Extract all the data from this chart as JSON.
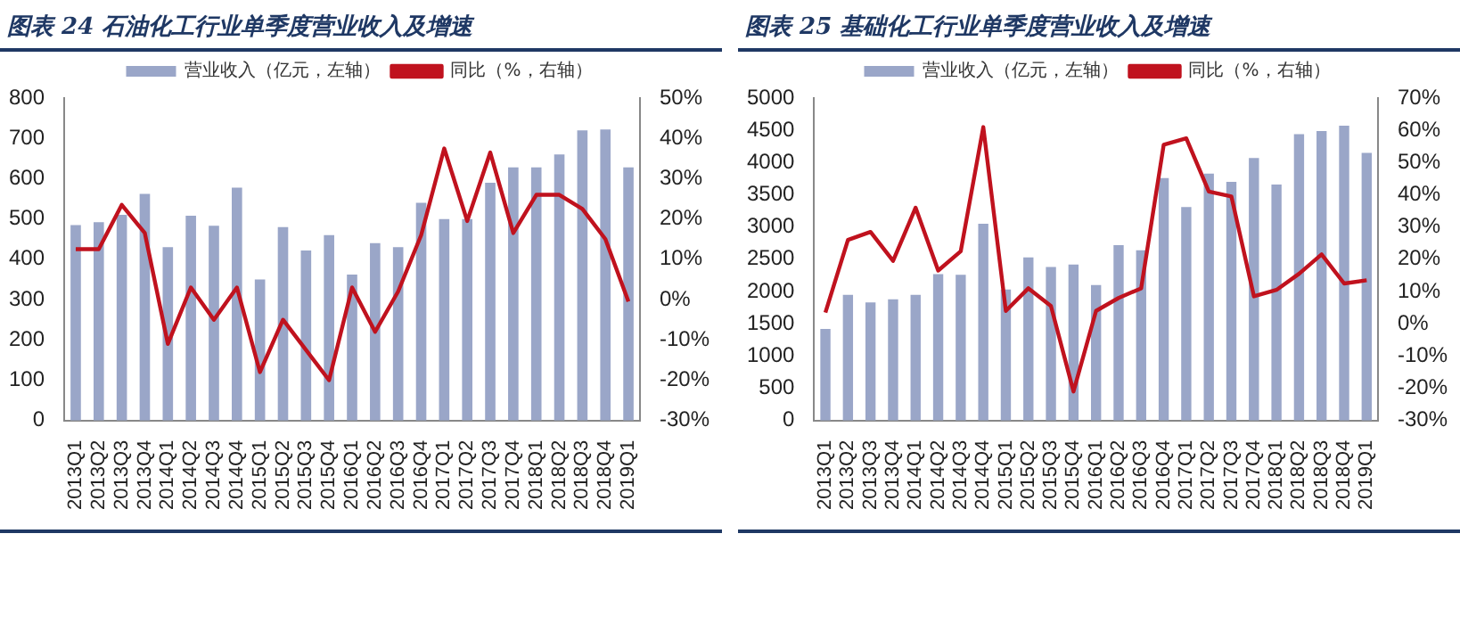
{
  "chart_data": [
    {
      "type": "bar",
      "title": "图表 24 石油化工行业单季度营业收入及增速",
      "categories": [
        "2013Q1",
        "2013Q2",
        "2013Q3",
        "2013Q4",
        "2014Q1",
        "2014Q2",
        "2014Q3",
        "2014Q4",
        "2015Q1",
        "2015Q2",
        "2015Q3",
        "2015Q4",
        "2016Q1",
        "2016Q2",
        "2016Q3",
        "2016Q4",
        "2017Q1",
        "2017Q2",
        "2017Q3",
        "2017Q4",
        "2018Q1",
        "2018Q2",
        "2018Q3",
        "2018Q4",
        "2019Q1"
      ],
      "series": [
        {
          "name": "营业收入（亿元，左轴）",
          "color": "#9aa6c8",
          "values": [
            485,
            492,
            510,
            562,
            430,
            508,
            483,
            578,
            350,
            480,
            422,
            460,
            362,
            440,
            430,
            540,
            500,
            500,
            590,
            628,
            628,
            660,
            720,
            722,
            628
          ]
        },
        {
          "name": "同比（%，右轴）",
          "type": "line",
          "axis": "y2",
          "color": "#c0121e",
          "values": [
            12.5,
            12.5,
            23.5,
            16.5,
            -11,
            3,
            -5,
            3,
            -18,
            -5,
            -12.5,
            -20,
            3,
            -8,
            2,
            16,
            37.5,
            19.5,
            36.5,
            16.5,
            26,
            26,
            22.5,
            15,
            -0.5
          ]
        }
      ],
      "ylim": [
        0,
        800
      ],
      "yticks": [
        0,
        100,
        200,
        300,
        400,
        500,
        600,
        700,
        800
      ],
      "y2lim": [
        -30,
        50
      ],
      "y2ticks": [
        {
          "value": -30,
          "label": "-30%"
        },
        {
          "value": -20,
          "label": "-20%"
        },
        {
          "value": -10,
          "label": "-10%"
        },
        {
          "value": 0,
          "label": "0%"
        },
        {
          "value": 10,
          "label": "10%"
        },
        {
          "value": 20,
          "label": "20%"
        },
        {
          "value": 30,
          "label": "30%"
        },
        {
          "value": 40,
          "label": "40%"
        },
        {
          "value": 50,
          "label": "50%"
        }
      ],
      "legend": "top",
      "grid": false,
      "marker": "none"
    },
    {
      "type": "bar",
      "title": "图表 25 基础化工行业单季度营业收入及增速",
      "categories": [
        "2013Q1",
        "2013Q2",
        "2013Q3",
        "2013Q4",
        "2014Q1",
        "2014Q2",
        "2014Q3",
        "2014Q4",
        "2015Q1",
        "2015Q2",
        "2015Q3",
        "2015Q4",
        "2016Q1",
        "2016Q2",
        "2016Q3",
        "2016Q4",
        "2017Q1",
        "2017Q2",
        "2017Q3",
        "2017Q4",
        "2018Q1",
        "2018Q2",
        "2018Q3",
        "2018Q4",
        "2019Q1"
      ],
      "series": [
        {
          "name": "营业收入（亿元，左轴）",
          "color": "#9aa6c8",
          "values": [
            1420,
            1950,
            1830,
            1880,
            1950,
            2270,
            2260,
            3050,
            2030,
            2530,
            2380,
            2420,
            2100,
            2720,
            2640,
            3760,
            3310,
            3830,
            3700,
            4070,
            3660,
            4440,
            4490,
            4570,
            4150
          ]
        },
        {
          "name": "同比（%，右轴）",
          "type": "line",
          "axis": "y2",
          "color": "#c0121e",
          "values": [
            3.5,
            26,
            28.5,
            19.5,
            36,
            16.5,
            22.5,
            61,
            4,
            11,
            5.5,
            -21,
            4,
            8,
            11,
            55.5,
            57.5,
            41,
            39.5,
            8.5,
            10.5,
            15.5,
            21.5,
            12.5,
            13.5
          ]
        }
      ],
      "ylim": [
        0,
        5000
      ],
      "yticks": [
        0,
        500,
        1000,
        1500,
        2000,
        2500,
        3000,
        3500,
        4000,
        4500,
        5000
      ],
      "y2lim": [
        -30,
        70
      ],
      "y2ticks": [
        {
          "value": -30,
          "label": "-30%"
        },
        {
          "value": -20,
          "label": "-20%"
        },
        {
          "value": -10,
          "label": "-10%"
        },
        {
          "value": 0,
          "label": "0%"
        },
        {
          "value": 10,
          "label": "10%"
        },
        {
          "value": 20,
          "label": "20%"
        },
        {
          "value": 30,
          "label": "30%"
        },
        {
          "value": 40,
          "label": "40%"
        },
        {
          "value": 50,
          "label": "50%"
        },
        {
          "value": 60,
          "label": "60%"
        },
        {
          "value": 70,
          "label": "70%"
        }
      ],
      "legend": "top",
      "grid": false,
      "marker": "none"
    }
  ]
}
